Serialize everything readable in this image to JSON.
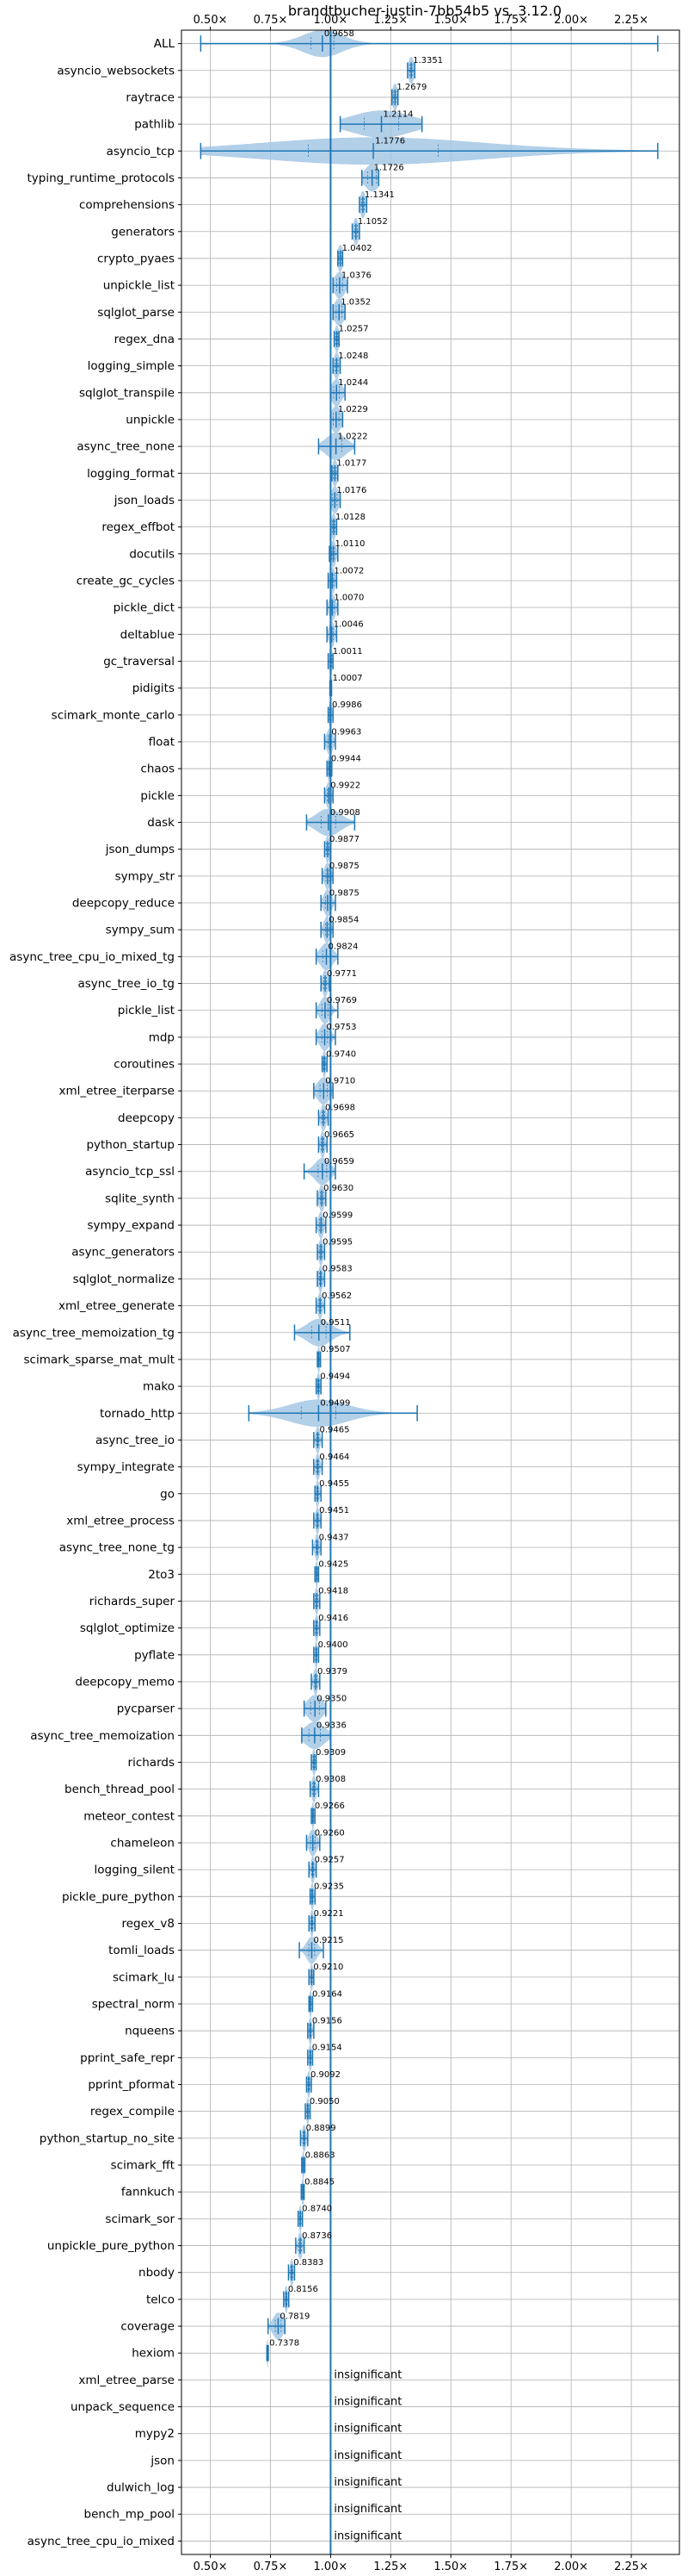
{
  "chart_data": {
    "type": "violin",
    "title": "brandtbucher-justin-7bb54b5 vs. 3.12.0",
    "xlim": [
      0.38,
      2.45
    ],
    "x_ticks": [
      0.5,
      0.75,
      1.0,
      1.25,
      1.5,
      1.75,
      2.0,
      2.25
    ],
    "x_tick_labels": [
      "0.50×",
      "0.75×",
      "1.00×",
      "1.25×",
      "1.50×",
      "1.75×",
      "2.00×",
      "2.25×"
    ],
    "reference_line": 1.0,
    "grid": true,
    "accent_color": "#1f77b4",
    "violin_color": "#a6c8e5",
    "insignificant_text": "insignificant",
    "rows": [
      {
        "name": "ALL",
        "value": 0.9658,
        "value_label": "0.9658",
        "min": 0.46,
        "max": 2.36,
        "spread": 0.08,
        "significant": true
      },
      {
        "name": "asyncio_websockets",
        "value": 1.3351,
        "value_label": "1.3351",
        "min": 1.32,
        "max": 1.35,
        "spread": 0.01,
        "significant": true
      },
      {
        "name": "raytrace",
        "value": 1.2679,
        "value_label": "1.2679",
        "min": 1.255,
        "max": 1.28,
        "spread": 0.01,
        "significant": true
      },
      {
        "name": "pathlib",
        "value": 1.2114,
        "value_label": "1.2114",
        "min": 1.04,
        "max": 1.38,
        "spread": 0.12,
        "significant": true
      },
      {
        "name": "asyncio_tcp",
        "value": 1.1776,
        "value_label": "1.1776",
        "min": 0.46,
        "max": 2.36,
        "spread": 0.45,
        "significant": true
      },
      {
        "name": "typing_runtime_protocols",
        "value": 1.1726,
        "value_label": "1.1726",
        "min": 1.13,
        "max": 1.2,
        "spread": 0.03,
        "significant": true
      },
      {
        "name": "comprehensions",
        "value": 1.1341,
        "value_label": "1.1341",
        "min": 1.12,
        "max": 1.15,
        "spread": 0.01,
        "significant": true
      },
      {
        "name": "generators",
        "value": 1.1052,
        "value_label": "1.1052",
        "min": 1.09,
        "max": 1.12,
        "spread": 0.01,
        "significant": true
      },
      {
        "name": "crypto_pyaes",
        "value": 1.0402,
        "value_label": "1.0402",
        "min": 1.03,
        "max": 1.05,
        "spread": 0.01,
        "significant": true
      },
      {
        "name": "unpickle_list",
        "value": 1.0376,
        "value_label": "1.0376",
        "min": 1.01,
        "max": 1.07,
        "spread": 0.02,
        "significant": true
      },
      {
        "name": "sqlglot_parse",
        "value": 1.0352,
        "value_label": "1.0352",
        "min": 1.01,
        "max": 1.06,
        "spread": 0.02,
        "significant": true
      },
      {
        "name": "regex_dna",
        "value": 1.0257,
        "value_label": "1.0257",
        "min": 1.015,
        "max": 1.035,
        "spread": 0.008,
        "significant": true
      },
      {
        "name": "logging_simple",
        "value": 1.0248,
        "value_label": "1.0248",
        "min": 1.01,
        "max": 1.04,
        "spread": 0.01,
        "significant": true
      },
      {
        "name": "sqlglot_transpile",
        "value": 1.0244,
        "value_label": "1.0244",
        "min": 1.0,
        "max": 1.06,
        "spread": 0.02,
        "significant": true
      },
      {
        "name": "unpickle",
        "value": 1.0229,
        "value_label": "1.0229",
        "min": 1.0,
        "max": 1.05,
        "spread": 0.02,
        "significant": true
      },
      {
        "name": "async_tree_none",
        "value": 1.0222,
        "value_label": "1.0222",
        "min": 0.95,
        "max": 1.1,
        "spread": 0.04,
        "significant": true
      },
      {
        "name": "logging_format",
        "value": 1.0177,
        "value_label": "1.0177",
        "min": 1.005,
        "max": 1.03,
        "spread": 0.01,
        "significant": true
      },
      {
        "name": "json_loads",
        "value": 1.0176,
        "value_label": "1.0176",
        "min": 1.0,
        "max": 1.04,
        "spread": 0.015,
        "significant": true
      },
      {
        "name": "regex_effbot",
        "value": 1.0128,
        "value_label": "1.0128",
        "min": 1.0,
        "max": 1.025,
        "spread": 0.008,
        "significant": true
      },
      {
        "name": "docutils",
        "value": 1.011,
        "value_label": "1.0110",
        "min": 0.995,
        "max": 1.03,
        "spread": 0.01,
        "significant": true
      },
      {
        "name": "create_gc_cycles",
        "value": 1.0072,
        "value_label": "1.0072",
        "min": 0.99,
        "max": 1.025,
        "spread": 0.01,
        "significant": true
      },
      {
        "name": "pickle_dict",
        "value": 1.007,
        "value_label": "1.0070",
        "min": 0.985,
        "max": 1.03,
        "spread": 0.012,
        "significant": true
      },
      {
        "name": "deltablue",
        "value": 1.0046,
        "value_label": "1.0046",
        "min": 0.985,
        "max": 1.025,
        "spread": 0.01,
        "significant": true
      },
      {
        "name": "gc_traversal",
        "value": 1.0011,
        "value_label": "1.0011",
        "min": 0.99,
        "max": 1.01,
        "spread": 0.006,
        "significant": true
      },
      {
        "name": "pidigits",
        "value": 1.0007,
        "value_label": "1.0007",
        "min": 0.997,
        "max": 1.004,
        "spread": 0.003,
        "significant": true
      },
      {
        "name": "scimark_monte_carlo",
        "value": 0.9986,
        "value_label": "0.9986",
        "min": 0.99,
        "max": 1.01,
        "spread": 0.005,
        "significant": true
      },
      {
        "name": "float",
        "value": 0.9963,
        "value_label": "0.9963",
        "min": 0.975,
        "max": 1.02,
        "spread": 0.012,
        "significant": true
      },
      {
        "name": "chaos",
        "value": 0.9944,
        "value_label": "0.9944",
        "min": 0.985,
        "max": 1.005,
        "spread": 0.006,
        "significant": true
      },
      {
        "name": "pickle",
        "value": 0.9922,
        "value_label": "0.9922",
        "min": 0.975,
        "max": 1.01,
        "spread": 0.01,
        "significant": true
      },
      {
        "name": "dask",
        "value": 0.9908,
        "value_label": "0.9908",
        "min": 0.9,
        "max": 1.1,
        "spread": 0.05,
        "significant": true
      },
      {
        "name": "json_dumps",
        "value": 0.9877,
        "value_label": "0.9877",
        "min": 0.975,
        "max": 1.0,
        "spread": 0.008,
        "significant": true
      },
      {
        "name": "sympy_str",
        "value": 0.9875,
        "value_label": "0.9875",
        "min": 0.965,
        "max": 1.01,
        "spread": 0.012,
        "significant": true
      },
      {
        "name": "deepcopy_reduce",
        "value": 0.9875,
        "value_label": "0.9875",
        "min": 0.96,
        "max": 1.02,
        "spread": 0.015,
        "significant": true
      },
      {
        "name": "sympy_sum",
        "value": 0.9854,
        "value_label": "0.9854",
        "min": 0.96,
        "max": 1.01,
        "spread": 0.012,
        "significant": true
      },
      {
        "name": "async_tree_cpu_io_mixed_tg",
        "value": 0.9824,
        "value_label": "0.9824",
        "min": 0.94,
        "max": 1.03,
        "spread": 0.025,
        "significant": true
      },
      {
        "name": "async_tree_io_tg",
        "value": 0.9771,
        "value_label": "0.9771",
        "min": 0.96,
        "max": 0.995,
        "spread": 0.01,
        "significant": true
      },
      {
        "name": "pickle_list",
        "value": 0.9769,
        "value_label": "0.9769",
        "min": 0.94,
        "max": 1.03,
        "spread": 0.02,
        "significant": true
      },
      {
        "name": "mdp",
        "value": 0.9753,
        "value_label": "0.9753",
        "min": 0.94,
        "max": 1.02,
        "spread": 0.02,
        "significant": true
      },
      {
        "name": "coroutines",
        "value": 0.974,
        "value_label": "0.9740",
        "min": 0.965,
        "max": 0.985,
        "spread": 0.006,
        "significant": true
      },
      {
        "name": "xml_etree_iterparse",
        "value": 0.971,
        "value_label": "0.9710",
        "min": 0.93,
        "max": 1.01,
        "spread": 0.025,
        "significant": true
      },
      {
        "name": "deepcopy",
        "value": 0.9698,
        "value_label": "0.9698",
        "min": 0.95,
        "max": 0.99,
        "spread": 0.01,
        "significant": true
      },
      {
        "name": "python_startup",
        "value": 0.9665,
        "value_label": "0.9665",
        "min": 0.95,
        "max": 0.985,
        "spread": 0.008,
        "significant": true
      },
      {
        "name": "asyncio_tcp_ssl",
        "value": 0.9659,
        "value_label": "0.9659",
        "min": 0.89,
        "max": 1.02,
        "spread": 0.03,
        "significant": true
      },
      {
        "name": "sqlite_synth",
        "value": 0.963,
        "value_label": "0.9630",
        "min": 0.945,
        "max": 0.98,
        "spread": 0.01,
        "significant": true
      },
      {
        "name": "sympy_expand",
        "value": 0.9599,
        "value_label": "0.9599",
        "min": 0.94,
        "max": 0.98,
        "spread": 0.01,
        "significant": true
      },
      {
        "name": "async_generators",
        "value": 0.9595,
        "value_label": "0.9595",
        "min": 0.945,
        "max": 0.975,
        "spread": 0.008,
        "significant": true
      },
      {
        "name": "sqlglot_normalize",
        "value": 0.9583,
        "value_label": "0.9583",
        "min": 0.945,
        "max": 0.975,
        "spread": 0.008,
        "significant": true
      },
      {
        "name": "xml_etree_generate",
        "value": 0.9562,
        "value_label": "0.9562",
        "min": 0.94,
        "max": 0.975,
        "spread": 0.008,
        "significant": true
      },
      {
        "name": "async_tree_memoization_tg",
        "value": 0.9511,
        "value_label": "0.9511",
        "min": 0.85,
        "max": 1.08,
        "spread": 0.05,
        "significant": true
      },
      {
        "name": "scimark_sparse_mat_mult",
        "value": 0.9507,
        "value_label": "0.9507",
        "min": 0.945,
        "max": 0.958,
        "spread": 0.004,
        "significant": true
      },
      {
        "name": "mako",
        "value": 0.9494,
        "value_label": "0.9494",
        "min": 0.94,
        "max": 0.96,
        "spread": 0.006,
        "significant": true
      },
      {
        "name": "tornado_http",
        "value": 0.9499,
        "value_label": "0.9499",
        "min": 0.66,
        "max": 1.36,
        "spread": 0.12,
        "significant": true
      },
      {
        "name": "async_tree_io",
        "value": 0.9465,
        "value_label": "0.9465",
        "min": 0.93,
        "max": 0.965,
        "spread": 0.008,
        "significant": true
      },
      {
        "name": "sympy_integrate",
        "value": 0.9464,
        "value_label": "0.9464",
        "min": 0.93,
        "max": 0.965,
        "spread": 0.008,
        "significant": true
      },
      {
        "name": "go",
        "value": 0.9455,
        "value_label": "0.9455",
        "min": 0.935,
        "max": 0.96,
        "spread": 0.006,
        "significant": true
      },
      {
        "name": "xml_etree_process",
        "value": 0.9451,
        "value_label": "0.9451",
        "min": 0.93,
        "max": 0.96,
        "spread": 0.007,
        "significant": true
      },
      {
        "name": "async_tree_none_tg",
        "value": 0.9437,
        "value_label": "0.9437",
        "min": 0.925,
        "max": 0.96,
        "spread": 0.008,
        "significant": true
      },
      {
        "name": "2to3",
        "value": 0.9425,
        "value_label": "0.9425",
        "min": 0.935,
        "max": 0.95,
        "spread": 0.004,
        "significant": true
      },
      {
        "name": "richards_super",
        "value": 0.9418,
        "value_label": "0.9418",
        "min": 0.93,
        "max": 0.955,
        "spread": 0.007,
        "significant": true
      },
      {
        "name": "sqlglot_optimize",
        "value": 0.9416,
        "value_label": "0.9416",
        "min": 0.93,
        "max": 0.955,
        "spread": 0.006,
        "significant": true
      },
      {
        "name": "pyflate",
        "value": 0.94,
        "value_label": "0.9400",
        "min": 0.93,
        "max": 0.95,
        "spread": 0.005,
        "significant": true
      },
      {
        "name": "deepcopy_memo",
        "value": 0.9379,
        "value_label": "0.9379",
        "min": 0.92,
        "max": 0.955,
        "spread": 0.008,
        "significant": true
      },
      {
        "name": "pycparser",
        "value": 0.935,
        "value_label": "0.9350",
        "min": 0.89,
        "max": 0.98,
        "spread": 0.03,
        "significant": true
      },
      {
        "name": "async_tree_memoization",
        "value": 0.9336,
        "value_label": "0.9336",
        "min": 0.88,
        "max": 1.0,
        "spread": 0.04,
        "significant": true
      },
      {
        "name": "richards",
        "value": 0.9309,
        "value_label": "0.9309",
        "min": 0.92,
        "max": 0.94,
        "spread": 0.006,
        "significant": true
      },
      {
        "name": "bench_thread_pool",
        "value": 0.9308,
        "value_label": "0.9308",
        "min": 0.915,
        "max": 0.95,
        "spread": 0.008,
        "significant": true
      },
      {
        "name": "meteor_contest",
        "value": 0.9266,
        "value_label": "0.9266",
        "min": 0.92,
        "max": 0.935,
        "spread": 0.004,
        "significant": true
      },
      {
        "name": "chameleon",
        "value": 0.926,
        "value_label": "0.9260",
        "min": 0.9,
        "max": 0.955,
        "spread": 0.015,
        "significant": true
      },
      {
        "name": "logging_silent",
        "value": 0.9257,
        "value_label": "0.9257",
        "min": 0.91,
        "max": 0.94,
        "spread": 0.007,
        "significant": true
      },
      {
        "name": "pickle_pure_python",
        "value": 0.9235,
        "value_label": "0.9235",
        "min": 0.915,
        "max": 0.935,
        "spread": 0.005,
        "significant": true
      },
      {
        "name": "regex_v8",
        "value": 0.9221,
        "value_label": "0.9221",
        "min": 0.91,
        "max": 0.935,
        "spread": 0.006,
        "significant": true
      },
      {
        "name": "tomli_loads",
        "value": 0.9215,
        "value_label": "0.9215",
        "min": 0.87,
        "max": 0.97,
        "spread": 0.02,
        "significant": true
      },
      {
        "name": "scimark_lu",
        "value": 0.921,
        "value_label": "0.9210",
        "min": 0.91,
        "max": 0.93,
        "spread": 0.005,
        "significant": true
      },
      {
        "name": "spectral_norm",
        "value": 0.9164,
        "value_label": "0.9164",
        "min": 0.91,
        "max": 0.925,
        "spread": 0.004,
        "significant": true
      },
      {
        "name": "nqueens",
        "value": 0.9156,
        "value_label": "0.9156",
        "min": 0.905,
        "max": 0.93,
        "spread": 0.006,
        "significant": true
      },
      {
        "name": "pprint_safe_repr",
        "value": 0.9154,
        "value_label": "0.9154",
        "min": 0.905,
        "max": 0.925,
        "spread": 0.005,
        "significant": true
      },
      {
        "name": "pprint_pformat",
        "value": 0.9092,
        "value_label": "0.9092",
        "min": 0.9,
        "max": 0.92,
        "spread": 0.005,
        "significant": true
      },
      {
        "name": "regex_compile",
        "value": 0.905,
        "value_label": "0.9050",
        "min": 0.895,
        "max": 0.915,
        "spread": 0.005,
        "significant": true
      },
      {
        "name": "python_startup_no_site",
        "value": 0.8899,
        "value_label": "0.8899",
        "min": 0.875,
        "max": 0.905,
        "spread": 0.007,
        "significant": true
      },
      {
        "name": "scimark_fft",
        "value": 0.8863,
        "value_label": "0.8863",
        "min": 0.88,
        "max": 0.893,
        "spread": 0.004,
        "significant": true
      },
      {
        "name": "fannkuch",
        "value": 0.8845,
        "value_label": "0.8845",
        "min": 0.878,
        "max": 0.89,
        "spread": 0.004,
        "significant": true
      },
      {
        "name": "scimark_sor",
        "value": 0.874,
        "value_label": "0.8740",
        "min": 0.865,
        "max": 0.883,
        "spread": 0.004,
        "significant": true
      },
      {
        "name": "unpickle_pure_python",
        "value": 0.8736,
        "value_label": "0.8736",
        "min": 0.855,
        "max": 0.89,
        "spread": 0.008,
        "significant": true
      },
      {
        "name": "nbody",
        "value": 0.8383,
        "value_label": "0.8383",
        "min": 0.825,
        "max": 0.85,
        "spread": 0.006,
        "significant": true
      },
      {
        "name": "telco",
        "value": 0.8156,
        "value_label": "0.8156",
        "min": 0.805,
        "max": 0.826,
        "spread": 0.005,
        "significant": true
      },
      {
        "name": "coverage",
        "value": 0.7819,
        "value_label": "0.7819",
        "min": 0.74,
        "max": 0.81,
        "spread": 0.02,
        "significant": true
      },
      {
        "name": "hexiom",
        "value": 0.7378,
        "value_label": "0.7378",
        "min": 0.735,
        "max": 0.741,
        "spread": 0.002,
        "significant": true
      },
      {
        "name": "xml_etree_parse",
        "value": null,
        "value_label": "",
        "significant": false
      },
      {
        "name": "unpack_sequence",
        "value": null,
        "value_label": "",
        "significant": false
      },
      {
        "name": "mypy2",
        "value": null,
        "value_label": "",
        "significant": false
      },
      {
        "name": "json",
        "value": null,
        "value_label": "",
        "significant": false
      },
      {
        "name": "dulwich_log",
        "value": null,
        "value_label": "",
        "significant": false
      },
      {
        "name": "bench_mp_pool",
        "value": null,
        "value_label": "",
        "significant": false
      },
      {
        "name": "async_tree_cpu_io_mixed",
        "value": null,
        "value_label": "",
        "significant": false
      }
    ]
  }
}
